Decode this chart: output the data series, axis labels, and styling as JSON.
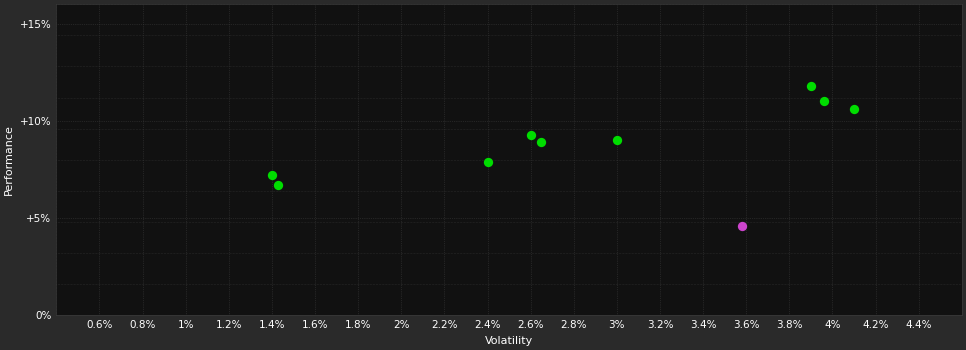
{
  "background_color": "#2a2a2a",
  "plot_bg_color": "#111111",
  "grid_color": "#3a3a3a",
  "text_color": "#ffffff",
  "green_points": [
    [
      1.4,
      7.2
    ],
    [
      1.43,
      6.7
    ],
    [
      2.4,
      7.9
    ],
    [
      2.6,
      9.3
    ],
    [
      2.65,
      8.9
    ],
    [
      3.0,
      9.0
    ],
    [
      3.9,
      11.8
    ],
    [
      3.96,
      11.0
    ],
    [
      4.1,
      10.6
    ]
  ],
  "magenta_points": [
    [
      3.58,
      4.6
    ]
  ],
  "green_color": "#00dd00",
  "magenta_color": "#cc44cc",
  "xlabel": "Volatility",
  "ylabel": "Performance",
  "xlim": [
    0.4,
    4.6
  ],
  "ylim": [
    0.0,
    16.0
  ],
  "xticks": [
    0.6,
    0.8,
    1.0,
    1.2,
    1.4,
    1.6,
    1.8,
    2.0,
    2.2,
    2.4,
    2.6,
    2.8,
    3.0,
    3.2,
    3.4,
    3.6,
    3.8,
    4.0,
    4.2,
    4.4
  ],
  "yticks": [
    0,
    5,
    10,
    15
  ],
  "num_hgrid_lines": 10,
  "ytick_labels": [
    "0%",
    "+5%",
    "+10%",
    "+15%"
  ],
  "xtick_labels": [
    "0.6%",
    "0.8%",
    "1%",
    "1.2%",
    "1.4%",
    "1.6%",
    "1.8%",
    "2%",
    "2.2%",
    "2.4%",
    "2.6%",
    "2.8%",
    "3%",
    "3.2%",
    "3.4%",
    "3.6%",
    "3.8%",
    "4%",
    "4.2%",
    "4.4%"
  ],
  "marker_size": 45,
  "xlabel_fontsize": 8,
  "ylabel_fontsize": 8,
  "tick_fontsize": 7.5,
  "figsize": [
    9.66,
    3.5
  ],
  "dpi": 100
}
